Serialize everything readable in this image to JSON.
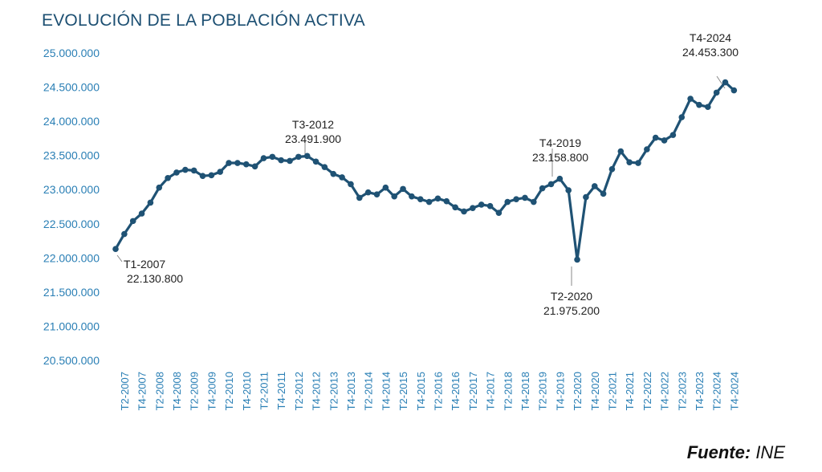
{
  "chart_data": {
    "type": "line",
    "title": "EVOLUCIÓN DE LA POBLACIÓN ACTIVA",
    "ylim": [
      20500000,
      25000000
    ],
    "y_ticks": [
      "25.000.000",
      "24.500.000",
      "24.000.000",
      "23.500.000",
      "23.000.000",
      "22.500.000",
      "22.000.000",
      "21.500.000",
      "21.000.000",
      "20.500.000"
    ],
    "x_tick_labels": [
      "T2-2007",
      "T4-2007",
      "T2-2008",
      "T4-2008",
      "T2-2009",
      "T4-2009",
      "T2-2010",
      "T4-2010",
      "T2-2011",
      "T4-2011",
      "T2-2012",
      "T4-2012",
      "T2-2013",
      "T4-2013",
      "T2-2014",
      "T4-2014",
      "T2-2015",
      "T4-2015",
      "T2-2016",
      "T4-2016",
      "T2-2017",
      "T4-2017",
      "T2-2018",
      "T4-2018",
      "T2-2019",
      "T4-2019",
      "T2-2020",
      "T4-2020",
      "T2-2021",
      "T4-2021",
      "T2-2022",
      "T4-2022",
      "T2-2023",
      "T4-2023",
      "T2-2024",
      "T4-2024"
    ],
    "x": [
      "T1-2007",
      "T2-2007",
      "T3-2007",
      "T4-2007",
      "T1-2008",
      "T2-2008",
      "T3-2008",
      "T4-2008",
      "T1-2009",
      "T2-2009",
      "T3-2009",
      "T4-2009",
      "T1-2010",
      "T2-2010",
      "T3-2010",
      "T4-2010",
      "T1-2011",
      "T2-2011",
      "T3-2011",
      "T4-2011",
      "T1-2012",
      "T2-2012",
      "T3-2012",
      "T4-2012",
      "T1-2013",
      "T2-2013",
      "T3-2013",
      "T4-2013",
      "T1-2014",
      "T2-2014",
      "T3-2014",
      "T4-2014",
      "T1-2015",
      "T2-2015",
      "T3-2015",
      "T4-2015",
      "T1-2016",
      "T2-2016",
      "T3-2016",
      "T4-2016",
      "T1-2017",
      "T2-2017",
      "T3-2017",
      "T4-2017",
      "T1-2018",
      "T2-2018",
      "T3-2018",
      "T4-2018",
      "T1-2019",
      "T2-2019",
      "T3-2019",
      "T4-2019",
      "T1-2020",
      "T2-2020",
      "T3-2020",
      "T4-2020",
      "T1-2021",
      "T2-2021",
      "T3-2021",
      "T4-2021",
      "T1-2022",
      "T2-2022",
      "T3-2022",
      "T4-2022",
      "T1-2023",
      "T2-2023",
      "T3-2023",
      "T4-2023",
      "T1-2024",
      "T2-2024",
      "T3-2024",
      "T4-2024"
    ],
    "values": [
      22130800,
      22350000,
      22540000,
      22650000,
      22810000,
      23030000,
      23170000,
      23250000,
      23290000,
      23280000,
      23200000,
      23210000,
      23260000,
      23390000,
      23390000,
      23370000,
      23340000,
      23460000,
      23480000,
      23430000,
      23420000,
      23480000,
      23491900,
      23410000,
      23330000,
      23230000,
      23180000,
      23080000,
      22880000,
      22960000,
      22930000,
      23030000,
      22900000,
      23010000,
      22900000,
      22860000,
      22820000,
      22870000,
      22830000,
      22740000,
      22680000,
      22730000,
      22780000,
      22760000,
      22660000,
      22820000,
      22860000,
      22880000,
      22820000,
      23020000,
      23080000,
      23158800,
      22990000,
      21975200,
      22890000,
      23050000,
      22940000,
      23300000,
      23560000,
      23400000,
      23390000,
      23590000,
      23760000,
      23720000,
      23800000,
      24060000,
      24330000,
      24240000,
      24210000,
      24420000,
      24570000,
      24453300
    ],
    "annotations": [
      {
        "period": "T1-2007",
        "value": "22.130.800"
      },
      {
        "period": "T3-2012",
        "value": "23.491.900"
      },
      {
        "period": "T4-2019",
        "value": "23.158.800"
      },
      {
        "period": "T2-2020",
        "value": "21.975.200"
      },
      {
        "period": "T4-2024",
        "value": "24.453.300"
      }
    ],
    "grid": false,
    "colors": {
      "line": "#1f5274",
      "axis_text": "#2a7fb5",
      "annotation_text": "#222222",
      "title": "#1c4f72"
    }
  },
  "source": {
    "label": "Fuente:",
    "value": "INE"
  }
}
